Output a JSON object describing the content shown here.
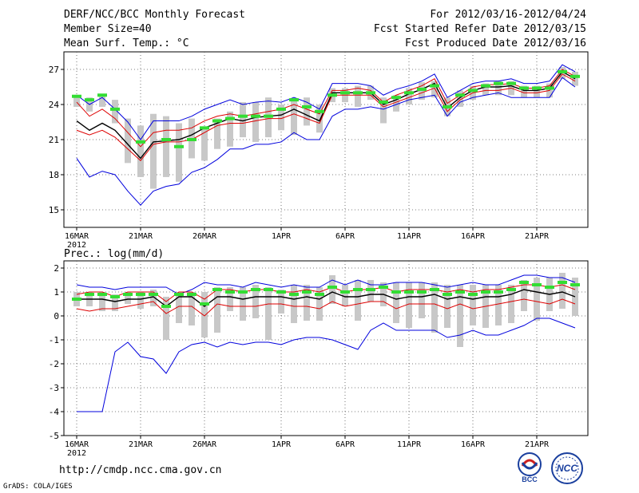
{
  "header": {
    "title": "DERF/NCC/BCC Monthly Forecast",
    "member_size": "Member Size=40",
    "variable": "Mean Surf. Temp.: °C",
    "period": "For 2012/03/16-2012/04/24",
    "start_date": "Fcst Started Refer Date 2012/03/15",
    "produced_date": "Fcst Produced Date 2012/03/16"
  },
  "footer": {
    "url": "http://cmdp.ncc.cma.gov.cn",
    "credit": "GrADS: COLA/IGES",
    "logo_bcc": "BCC",
    "logo_ncc": "NCC"
  },
  "colors": {
    "mean": "#000000",
    "envelope": "#0000dd",
    "spread": "#dd0000",
    "bar": "#c8c8c8",
    "observation": "#33dd33"
  },
  "chart_data": [
    {
      "type": "line",
      "title": "Mean Surf. Temp.: °C",
      "x_labels": [
        "16MAR",
        "21MAR",
        "26MAR",
        "1APR",
        "6APR",
        "11APR",
        "16APR",
        "21APR"
      ],
      "x_label_days": [
        1,
        6,
        11,
        17,
        22,
        27,
        32,
        37
      ],
      "x_sublabel": "2012",
      "xlim": [
        1,
        40
      ],
      "ylim": [
        13.5,
        28.5
      ],
      "yticks": [
        15,
        18,
        21,
        24,
        27
      ],
      "grid": true,
      "series": [
        {
          "name": "ensemble max",
          "color": "blue",
          "values": [
            24.8,
            24.0,
            24.6,
            23.6,
            22.5,
            21.0,
            22.6,
            22.6,
            22.6,
            23.0,
            23.6,
            24.0,
            24.4,
            24.0,
            24.2,
            24.3,
            24.2,
            24.6,
            24.2,
            23.6,
            25.8,
            25.8,
            25.8,
            25.6,
            24.8,
            25.3,
            25.6,
            26.0,
            26.6,
            24.6,
            25.2,
            25.8,
            26.0,
            26.0,
            26.2,
            25.8,
            25.8,
            26.0,
            27.4,
            26.8
          ]
        },
        {
          "name": "ensemble min",
          "color": "blue",
          "values": [
            19.4,
            17.8,
            18.3,
            18.0,
            16.6,
            15.4,
            16.6,
            17.0,
            17.2,
            18.2,
            18.6,
            19.3,
            20.2,
            20.2,
            20.6,
            20.6,
            20.8,
            21.6,
            21.0,
            21.0,
            23.0,
            23.6,
            23.6,
            23.8,
            23.6,
            24.0,
            24.4,
            24.6,
            24.8,
            23.0,
            24.2,
            24.6,
            24.8,
            25.0,
            24.6,
            24.6,
            24.6,
            24.6,
            26.3,
            25.5
          ]
        },
        {
          "name": "mean + spread",
          "color": "red",
          "values": [
            24.2,
            23.0,
            23.6,
            22.8,
            21.6,
            20.4,
            21.6,
            21.8,
            21.8,
            22.0,
            22.6,
            23.0,
            23.2,
            23.0,
            23.2,
            23.4,
            23.6,
            24.0,
            23.6,
            23.2,
            25.2,
            25.2,
            25.4,
            25.2,
            24.2,
            24.8,
            25.2,
            25.6,
            26.2,
            24.1,
            24.8,
            25.5,
            25.7,
            25.7,
            25.8,
            25.4,
            25.4,
            25.6,
            27.0,
            26.4
          ]
        },
        {
          "name": "mean - spread",
          "color": "red",
          "values": [
            21.8,
            21.4,
            21.8,
            21.2,
            20.2,
            19.2,
            20.6,
            20.8,
            20.8,
            21.0,
            21.6,
            22.2,
            22.4,
            22.4,
            22.6,
            22.8,
            22.8,
            23.2,
            22.8,
            22.4,
            24.8,
            24.8,
            24.8,
            24.8,
            23.8,
            24.2,
            24.6,
            25.0,
            25.4,
            23.4,
            24.4,
            25.0,
            25.2,
            25.2,
            25.4,
            25.0,
            25.0,
            25.2,
            26.6,
            26.0
          ]
        },
        {
          "name": "ensemble mean",
          "color": "black",
          "values": [
            22.6,
            21.8,
            22.4,
            21.8,
            20.6,
            19.4,
            20.8,
            20.9,
            21.0,
            21.4,
            22.0,
            22.4,
            22.8,
            22.6,
            22.9,
            23.0,
            23.1,
            23.6,
            23.1,
            22.6,
            25.0,
            25.0,
            25.0,
            25.0,
            24.0,
            24.4,
            24.9,
            25.3,
            25.8,
            23.7,
            24.6,
            25.2,
            25.5,
            25.5,
            25.6,
            25.2,
            25.2,
            25.4,
            26.8,
            26.2
          ]
        },
        {
          "name": "observed",
          "color": "green",
          "values": [
            24.7,
            24.4,
            24.8,
            23.6,
            null,
            20.8,
            null,
            21.0,
            20.4,
            21.0,
            22.0,
            22.6,
            22.8,
            23.0,
            23.0,
            23.0,
            23.6,
            24.4,
            23.8,
            23.4,
            24.8,
            25.0,
            25.0,
            25.0,
            24.2,
            24.6,
            25.0,
            25.3,
            25.6,
            23.8,
            24.8,
            25.2,
            25.6,
            25.8,
            25.8,
            25.4,
            25.4,
            25.4,
            26.8,
            26.4
          ]
        },
        {
          "name": "bars",
          "color": "gray",
          "ranges": [
            [
              23.8,
              24.8
            ],
            [
              23.4,
              24.6
            ],
            [
              23.8,
              24.9
            ],
            [
              22.4,
              24.4
            ],
            [
              19.0,
              22.8
            ],
            [
              17.8,
              22.2
            ],
            [
              16.8,
              23.2
            ],
            [
              17.8,
              23.0
            ],
            [
              17.4,
              22.4
            ],
            [
              19.4,
              22.8
            ],
            [
              19.2,
              22.0
            ],
            [
              20.2,
              22.8
            ],
            [
              20.4,
              23.4
            ],
            [
              21.2,
              24.2
            ],
            [
              20.8,
              24.2
            ],
            [
              21.2,
              24.6
            ],
            [
              21.8,
              24.0
            ],
            [
              21.4,
              24.4
            ],
            [
              22.2,
              24.6
            ],
            [
              21.6,
              24.0
            ],
            [
              24.2,
              25.4
            ],
            [
              24.2,
              25.4
            ],
            [
              23.8,
              25.6
            ],
            [
              24.4,
              25.6
            ],
            [
              22.4,
              24.6
            ],
            [
              23.4,
              24.8
            ],
            [
              24.0,
              25.4
            ],
            [
              24.4,
              25.9
            ],
            [
              24.6,
              26.0
            ],
            [
              23.0,
              24.6
            ],
            [
              23.8,
              25.2
            ],
            [
              24.4,
              25.6
            ],
            [
              24.8,
              25.8
            ],
            [
              24.8,
              26.0
            ],
            [
              24.8,
              26.0
            ],
            [
              24.6,
              25.6
            ],
            [
              24.6,
              25.6
            ],
            [
              24.6,
              25.8
            ],
            [
              26.2,
              27.2
            ],
            [
              25.6,
              26.8
            ]
          ]
        }
      ]
    },
    {
      "type": "line",
      "title": "Prec.: log(mm/d)",
      "x_labels": [
        "16MAR",
        "21MAR",
        "26MAR",
        "1APR",
        "6APR",
        "11APR",
        "16APR",
        "21APR"
      ],
      "x_label_days": [
        1,
        6,
        11,
        17,
        22,
        27,
        32,
        37
      ],
      "x_sublabel": "2012",
      "xlim": [
        1,
        40
      ],
      "ylim": [
        -5,
        2.3
      ],
      "yticks": [
        -5,
        -4,
        -3,
        -2,
        -1,
        0,
        1,
        2
      ],
      "grid": true,
      "series": [
        {
          "name": "ensemble max",
          "color": "blue",
          "values": [
            1.3,
            1.2,
            1.2,
            1.1,
            1.2,
            1.2,
            1.2,
            1.2,
            0.9,
            1.1,
            1.4,
            1.3,
            1.3,
            1.2,
            1.4,
            1.3,
            1.2,
            1.3,
            1.2,
            1.2,
            1.5,
            1.3,
            1.5,
            1.3,
            1.3,
            1.4,
            1.4,
            1.4,
            1.3,
            1.2,
            1.3,
            1.4,
            1.3,
            1.3,
            1.5,
            1.7,
            1.7,
            1.6,
            1.6,
            1.4
          ]
        },
        {
          "name": "ensemble min",
          "color": "blue",
          "values": [
            -4.0,
            -4.0,
            -4.0,
            -1.5,
            -1.1,
            -1.7,
            -1.8,
            -2.4,
            -1.5,
            -1.2,
            -1.1,
            -1.3,
            -1.1,
            -1.2,
            -1.1,
            -1.1,
            -1.2,
            -1.0,
            -0.9,
            -0.9,
            -1.0,
            -1.2,
            -1.4,
            -0.6,
            -0.3,
            -0.6,
            -0.6,
            -0.6,
            -0.6,
            -0.9,
            -0.8,
            -0.6,
            -0.8,
            -0.8,
            -0.6,
            -0.4,
            -0.1,
            -0.1,
            -0.3,
            -0.5
          ]
        },
        {
          "name": "mean + spread",
          "color": "red",
          "values": [
            0.9,
            1.0,
            1.0,
            0.8,
            1.0,
            1.0,
            1.0,
            0.6,
            1.0,
            1.0,
            0.7,
            1.1,
            1.1,
            1.0,
            1.1,
            1.1,
            1.0,
            1.0,
            1.1,
            1.0,
            1.2,
            1.0,
            1.1,
            1.1,
            1.2,
            1.0,
            1.1,
            1.1,
            1.1,
            1.0,
            1.1,
            1.0,
            1.1,
            1.1,
            1.2,
            1.3,
            1.3,
            1.2,
            1.3,
            1.1
          ]
        },
        {
          "name": "mean - spread",
          "color": "red",
          "values": [
            0.3,
            0.2,
            0.3,
            0.3,
            0.4,
            0.5,
            0.6,
            0.1,
            0.4,
            0.4,
            0.0,
            0.5,
            0.4,
            0.4,
            0.4,
            0.5,
            0.5,
            0.4,
            0.4,
            0.3,
            0.6,
            0.4,
            0.5,
            0.6,
            0.6,
            0.3,
            0.5,
            0.5,
            0.5,
            0.3,
            0.5,
            0.3,
            0.4,
            0.5,
            0.6,
            0.7,
            0.6,
            0.5,
            0.7,
            0.5
          ]
        },
        {
          "name": "ensemble mean",
          "color": "black",
          "values": [
            0.7,
            0.7,
            0.7,
            0.6,
            0.7,
            0.7,
            0.8,
            0.4,
            0.8,
            0.8,
            0.4,
            0.8,
            0.8,
            0.7,
            0.8,
            0.8,
            0.8,
            0.7,
            0.8,
            0.7,
            1.0,
            0.8,
            0.8,
            0.9,
            0.9,
            0.7,
            0.8,
            0.8,
            0.9,
            0.7,
            0.8,
            0.7,
            0.8,
            0.8,
            0.9,
            1.1,
            1.0,
            0.9,
            1.0,
            0.8
          ]
        },
        {
          "name": "observed",
          "color": "green",
          "values": [
            0.7,
            0.9,
            0.9,
            0.8,
            0.9,
            0.9,
            0.9,
            0.4,
            0.9,
            0.9,
            0.5,
            1.1,
            1.0,
            1.0,
            1.1,
            1.1,
            1.0,
            0.9,
            1.0,
            0.9,
            1.2,
            1.0,
            1.1,
            1.1,
            1.2,
            1.0,
            1.0,
            1.0,
            1.1,
            0.9,
            1.0,
            0.9,
            1.0,
            1.0,
            1.1,
            1.4,
            1.3,
            1.2,
            1.4,
            1.3
          ]
        },
        {
          "name": "bars",
          "color": "gray",
          "ranges": [
            [
              0.4,
              1.0
            ],
            [
              0.4,
              1.0
            ],
            [
              0.2,
              1.0
            ],
            [
              0.2,
              0.9
            ],
            [
              0.5,
              1.0
            ],
            [
              0.3,
              1.0
            ],
            [
              0.4,
              1.1
            ],
            [
              -1.0,
              0.8
            ],
            [
              -0.3,
              1.0
            ],
            [
              -0.4,
              1.0
            ],
            [
              -0.9,
              1.0
            ],
            [
              -0.7,
              1.2
            ],
            [
              0.2,
              1.2
            ],
            [
              -0.2,
              1.2
            ],
            [
              -0.1,
              1.3
            ],
            [
              -1.0,
              1.2
            ],
            [
              0.1,
              1.1
            ],
            [
              -0.3,
              1.3
            ],
            [
              -0.2,
              1.3
            ],
            [
              -0.2,
              1.2
            ],
            [
              0.5,
              1.7
            ],
            [
              0.4,
              1.3
            ],
            [
              -0.2,
              1.5
            ],
            [
              0.6,
              1.5
            ],
            [
              0.4,
              1.4
            ],
            [
              -0.3,
              1.4
            ],
            [
              -0.5,
              1.4
            ],
            [
              -0.1,
              1.4
            ],
            [
              -0.7,
              1.4
            ],
            [
              -0.5,
              1.3
            ],
            [
              -1.3,
              1.3
            ],
            [
              -0.4,
              1.3
            ],
            [
              -0.5,
              1.3
            ],
            [
              -0.4,
              1.3
            ],
            [
              -0.3,
              1.3
            ],
            [
              0.2,
              1.5
            ],
            [
              -0.2,
              1.6
            ],
            [
              0.2,
              1.6
            ],
            [
              0.3,
              1.8
            ],
            [
              0.0,
              1.6
            ]
          ]
        }
      ]
    }
  ]
}
